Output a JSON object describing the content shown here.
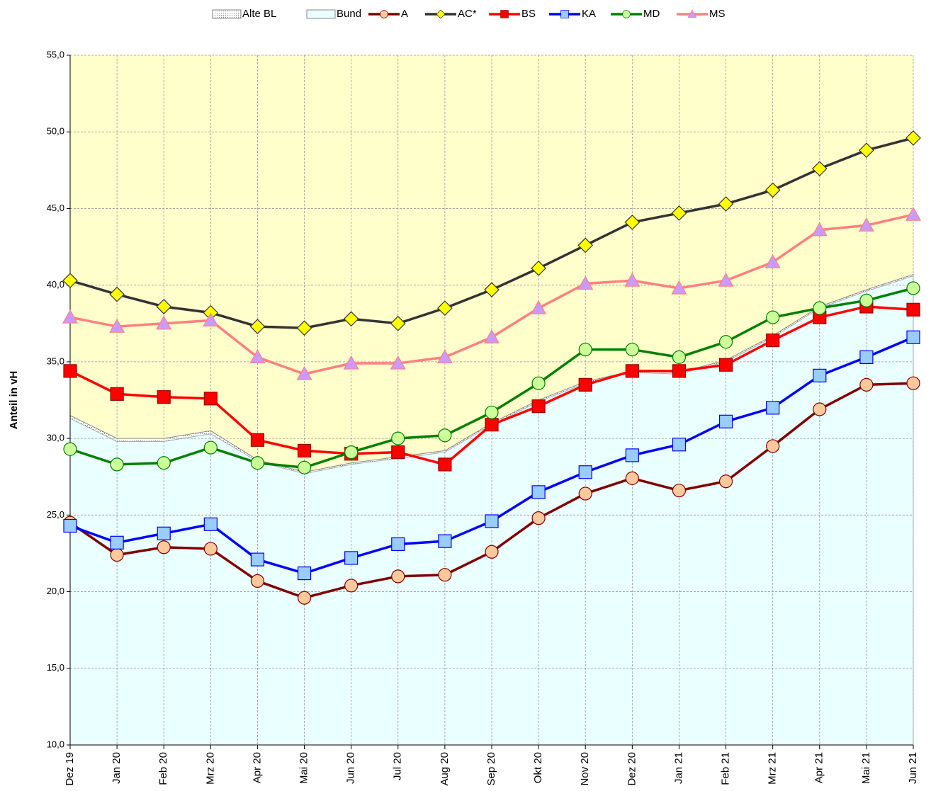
{
  "chart_data": {
    "type": "line",
    "y_label": "Anteil in vH",
    "categories": [
      "Dez 19",
      "Jan 20",
      "Feb 20",
      "Mrz 20",
      "Apr 20",
      "Mai 20",
      "Jun 20",
      "Jul 20",
      "Aug 20",
      "Sep 20",
      "Okt 20",
      "Nov 20",
      "Dez 20",
      "Jan 21",
      "Feb 21",
      "Mrz 21",
      "Apr 21",
      "Mai 21",
      "Jun 21"
    ],
    "ylim": [
      10,
      55
    ],
    "yticks": [
      {
        "value": 10,
        "label": "10,0"
      },
      {
        "value": 15,
        "label": "15,0"
      },
      {
        "value": 20,
        "label": "20,0"
      },
      {
        "value": 25,
        "label": "25,0"
      },
      {
        "value": 30,
        "label": "30,0"
      },
      {
        "value": 35,
        "label": "35,0"
      },
      {
        "value": 40,
        "label": "40,0"
      },
      {
        "value": 45,
        "label": "45,0"
      },
      {
        "value": 50,
        "label": "50,0"
      },
      {
        "value": 55,
        "label": "55,0"
      }
    ],
    "grid": true,
    "background": "#ffffcc",
    "series": [
      {
        "name": "Alte BL",
        "kind": "area",
        "color": "#999999",
        "values": [
          31.5,
          30.0,
          30.0,
          30.5,
          28.6,
          27.8,
          28.4,
          28.8,
          29.2,
          31.0,
          32.5,
          33.7,
          34.4,
          34.3,
          35.1,
          36.7,
          38.6,
          39.7,
          40.7
        ]
      },
      {
        "name": "Bund",
        "kind": "area",
        "color": "#eaffff",
        "values": [
          31.3,
          29.8,
          29.8,
          30.3,
          28.5,
          27.7,
          28.3,
          28.7,
          29.1,
          30.9,
          32.4,
          33.6,
          34.3,
          34.2,
          35.0,
          36.6,
          38.5,
          39.6,
          40.6
        ]
      },
      {
        "name": "A",
        "kind": "line",
        "color": "#800000",
        "marker": "circle",
        "marker_fill": "#fcc99c",
        "values": [
          24.5,
          22.4,
          22.9,
          22.8,
          20.7,
          19.6,
          20.4,
          21.0,
          21.1,
          22.6,
          24.8,
          26.4,
          27.4,
          26.6,
          27.2,
          29.5,
          31.9,
          33.5,
          33.6
        ]
      },
      {
        "name": "AC*",
        "kind": "line",
        "color": "#333333",
        "marker": "diamond",
        "marker_fill": "#ffff00",
        "values": [
          40.3,
          39.4,
          38.6,
          38.2,
          37.3,
          37.2,
          37.8,
          37.5,
          38.5,
          39.7,
          41.1,
          42.6,
          44.1,
          44.7,
          45.3,
          46.2,
          47.6,
          48.8,
          49.6
        ]
      },
      {
        "name": "BS",
        "kind": "line",
        "color": "#ff0000",
        "marker": "square",
        "marker_fill": "#ff0000",
        "values": [
          34.4,
          32.9,
          32.7,
          32.6,
          29.9,
          29.2,
          29.0,
          29.1,
          28.3,
          30.9,
          32.1,
          33.5,
          34.4,
          34.4,
          34.8,
          36.4,
          37.9,
          38.6,
          38.4
        ]
      },
      {
        "name": "KA",
        "kind": "line",
        "color": "#0000ff",
        "marker": "square",
        "marker_fill": "#99ccff",
        "values": [
          24.3,
          23.2,
          23.8,
          24.4,
          22.1,
          21.2,
          22.2,
          23.1,
          23.3,
          24.6,
          26.5,
          27.8,
          28.9,
          29.6,
          31.1,
          32.0,
          34.1,
          35.3,
          36.6
        ]
      },
      {
        "name": "MD",
        "kind": "line",
        "color": "#008000",
        "marker": "circle",
        "marker_fill": "#ccff99",
        "values": [
          29.3,
          28.3,
          28.4,
          29.4,
          28.4,
          28.1,
          29.1,
          30.0,
          30.2,
          31.7,
          33.6,
          35.8,
          35.8,
          35.3,
          36.3,
          37.9,
          38.5,
          39.0,
          39.8
        ]
      },
      {
        "name": "MS",
        "kind": "line",
        "color": "#ff8080",
        "marker": "triangle",
        "marker_fill": "#cc99ff",
        "values": [
          37.9,
          37.3,
          37.5,
          37.7,
          35.3,
          34.2,
          34.9,
          34.9,
          35.3,
          36.6,
          38.5,
          40.1,
          40.3,
          39.8,
          40.3,
          41.5,
          43.6,
          43.9,
          44.6
        ]
      }
    ]
  }
}
